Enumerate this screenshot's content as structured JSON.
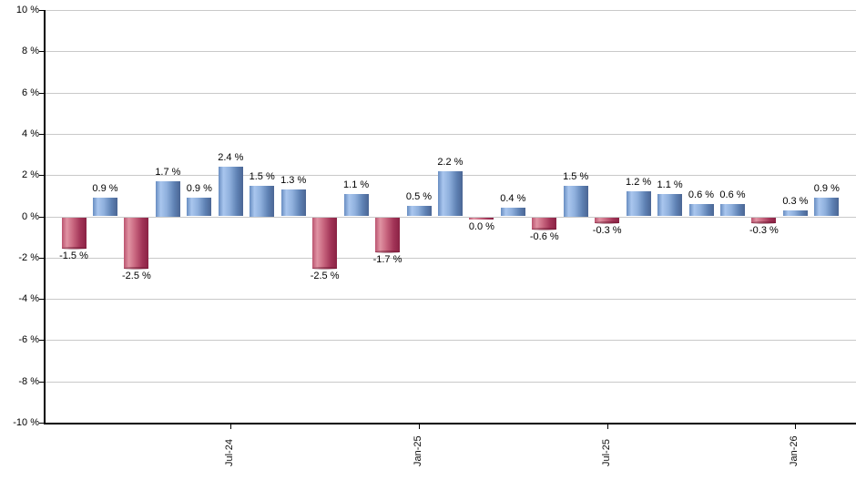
{
  "chart": {
    "background": "#ffffff",
    "axis_color": "#000000",
    "grid_color": "#c9c9c9",
    "text_color": "#000000"
  },
  "chart_data": {
    "type": "bar",
    "title": "",
    "xlabel": "",
    "ylabel": "",
    "ylim": [
      -10,
      10
    ],
    "y_tick_step": 2,
    "grid": true,
    "legend": "none",
    "positive_color": "#8fb0dd",
    "negative_color": "#c96780",
    "positive_gradient": [
      "#688dc1",
      "#a9c6ee",
      "#8fb0dd",
      "#5f82b4",
      "#4a6594"
    ],
    "negative_gradient": [
      "#bb5470",
      "#e093a3",
      "#c96780",
      "#a23457",
      "#8a2244"
    ],
    "y_ticks": [
      {
        "value": 10,
        "label": "10 %"
      },
      {
        "value": 8,
        "label": "8 %"
      },
      {
        "value": 6,
        "label": "6 %"
      },
      {
        "value": 4,
        "label": "4 %"
      },
      {
        "value": 2,
        "label": "2 %"
      },
      {
        "value": 0,
        "label": "0 %"
      },
      {
        "value": -2,
        "label": "-2 %"
      },
      {
        "value": -4,
        "label": "-4 %"
      },
      {
        "value": -6,
        "label": "-6 %"
      },
      {
        "value": -8,
        "label": "-8 %"
      },
      {
        "value": -10,
        "label": "-10 %"
      }
    ],
    "x_ticks": [
      {
        "bar_index": 5,
        "label": "Jul-24"
      },
      {
        "bar_index": 11,
        "label": "Jan-25"
      },
      {
        "bar_index": 17,
        "label": "Jul-25"
      },
      {
        "bar_index": 23,
        "label": "Jan-26"
      }
    ],
    "series": [
      {
        "name": "monthly-return-percent",
        "values": [
          -1.5,
          0.9,
          -2.5,
          1.7,
          0.9,
          2.4,
          1.5,
          1.3,
          -2.5,
          1.1,
          -1.7,
          0.5,
          2.2,
          0.0,
          0.4,
          -0.6,
          1.5,
          -0.3,
          1.2,
          1.1,
          0.6,
          0.6,
          -0.3,
          0.3,
          0.9
        ],
        "value_labels": [
          "-1.5 %",
          "0.9 %",
          "-2.5 %",
          "1.7 %",
          "0.9 %",
          "2.4 %",
          "1.5 %",
          "1.3 %",
          "-2.5 %",
          "1.1 %",
          "-1.7 %",
          "0.5 %",
          "2.2 %",
          "0.0 %",
          "0.4 %",
          "-0.6 %",
          "1.5 %",
          "-0.3 %",
          "1.2 %",
          "1.1 %",
          "0.6 %",
          "0.6 %",
          "-0.3 %",
          "0.3 %",
          "0.9 %"
        ]
      }
    ]
  }
}
